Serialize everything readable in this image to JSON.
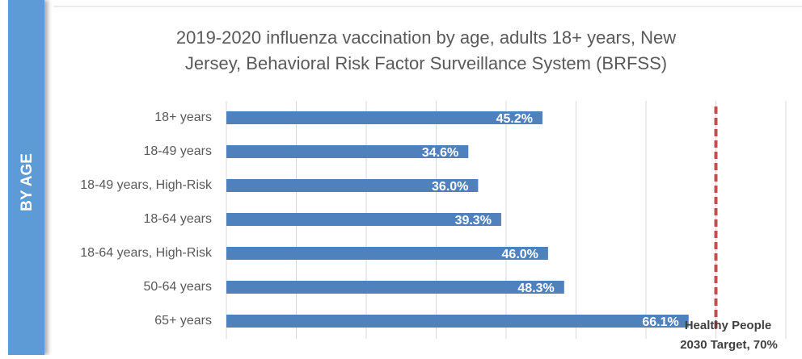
{
  "sidebar_label": "BY AGE",
  "chart_data": {
    "type": "bar",
    "orientation": "horizontal",
    "title_lines": [
      "2019-2020 influenza vaccination by age, adults 18+ years, New",
      "Jersey, Behavioral Risk Factor Surveillance System (BRFSS)"
    ],
    "categories": [
      "18+ years",
      "18-49 years",
      "18-49 years, High-Risk",
      "18-64 years",
      "18-64 years, High-Risk",
      "50-64 years",
      "65+ years"
    ],
    "values": [
      45.2,
      34.6,
      36.0,
      39.3,
      46.0,
      48.3,
      66.1
    ],
    "value_labels": [
      "45.2%",
      "34.6%",
      "36.0%",
      "39.3%",
      "46.0%",
      "48.3%",
      "66.1%"
    ],
    "color": "#4f81bd",
    "xlim": [
      0,
      80
    ],
    "xticks": [
      0,
      10,
      20,
      30,
      40,
      50,
      60,
      70,
      80
    ],
    "grid": true,
    "target": {
      "value": 70,
      "label_lines": [
        "Healthy People",
        "2030 Target, 70%"
      ],
      "color": "#c0504d"
    }
  }
}
